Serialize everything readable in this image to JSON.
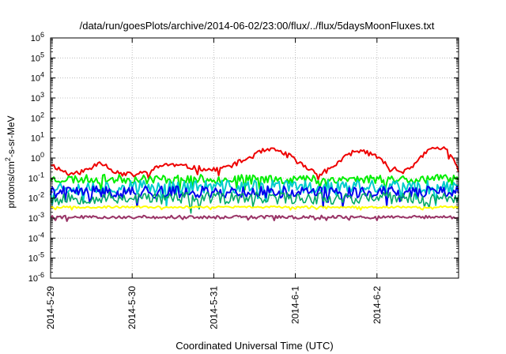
{
  "chart_data": {
    "type": "line",
    "title": "/data/run/goesPlots/archive/2014-06-02/23:00/flux/../flux/5daysMoonFluxes.txt",
    "xlabel": "Coordinated Universal Time (UTC)",
    "ylabel": {
      "base": "protons/cm",
      "sup": "2",
      "rest": "-s-sr-MeV"
    },
    "scale_y": "log",
    "grid": true,
    "legend": "none",
    "xlim": [
      "2014-05-29",
      "2014-06-03"
    ],
    "x_ticks": [
      "2014-5-29",
      "2014-5-30",
      "2014-5-31",
      "2014-6-1",
      "2014-6-2"
    ],
    "ylim_exponent": [
      -6,
      6
    ],
    "y_tick_base": "10",
    "y_ticks": [
      "-6",
      "-5",
      "-4",
      "-3",
      "-2",
      "-1",
      "0",
      "1",
      "2",
      "3",
      "4",
      "5",
      "6"
    ],
    "series": [
      {
        "color": "#ee0000",
        "width": 2,
        "seed": 11,
        "x_days": [
          0,
          0.15,
          0.3,
          0.5,
          0.6,
          0.8,
          1.0,
          1.2,
          1.4,
          1.6,
          1.8,
          2.0,
          2.2,
          2.4,
          2.6,
          2.75,
          2.9,
          3.1,
          3.3,
          3.5,
          3.7,
          3.9,
          4.1,
          4.3,
          4.5,
          4.6,
          4.7,
          4.85,
          4.95,
          5.0
        ],
        "y_exp": [
          -0.3,
          -0.65,
          -0.8,
          -0.5,
          -0.15,
          -0.7,
          -0.85,
          -0.7,
          -0.3,
          -0.4,
          -0.5,
          -0.6,
          -0.4,
          -0.05,
          0.35,
          0.4,
          0.2,
          -0.4,
          -0.8,
          -0.3,
          0.3,
          0.35,
          -0.3,
          -0.7,
          -0.2,
          0.3,
          0.5,
          0.45,
          -0.1,
          -0.6
        ],
        "noise": 0.12
      },
      {
        "color": "#00ee00",
        "width": 2,
        "seed": 23,
        "x_days": [
          0,
          5
        ],
        "y_exp": [
          -1.05,
          -1.05
        ],
        "noise": 0.22
      },
      {
        "color": "#00cccc",
        "width": 2,
        "seed": 37,
        "x_days": [
          0,
          5
        ],
        "y_exp": [
          -1.45,
          -1.45
        ],
        "noise": 0.35
      },
      {
        "color": "#0000ee",
        "width": 2,
        "seed": 41,
        "x_days": [
          0,
          5
        ],
        "y_exp": [
          -1.7,
          -1.7
        ],
        "noise": 0.3
      },
      {
        "color": "#00aa66",
        "width": 1.6,
        "seed": 53,
        "x_days": [
          0,
          5
        ],
        "y_exp": [
          -2.0,
          -2.0
        ],
        "noise": 0.3
      },
      {
        "color": "#ffff00",
        "width": 2,
        "seed": 67,
        "x_days": [
          0,
          5
        ],
        "y_exp": [
          -2.45,
          -2.45
        ],
        "noise": 0.05
      },
      {
        "color": "#993366",
        "width": 2,
        "seed": 79,
        "x_days": [
          0,
          5
        ],
        "y_exp": [
          -2.95,
          -2.95
        ],
        "noise": 0.08
      }
    ]
  }
}
